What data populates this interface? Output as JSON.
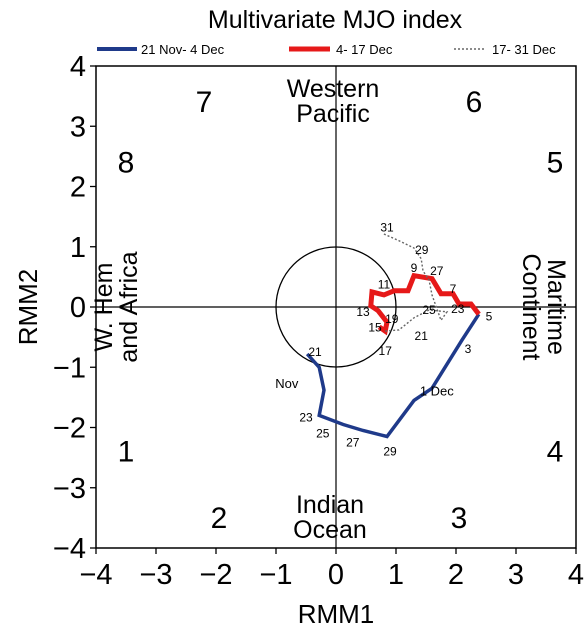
{
  "chart_data": {
    "type": "line",
    "title": "Multivariate MJO index",
    "xlabel": "RMM1",
    "ylabel": "RMM2",
    "xlim": [
      -4,
      4
    ],
    "ylim": [
      -4,
      4
    ],
    "xticks": [
      "−4",
      "−3",
      "−2",
      "−1",
      "0",
      "1",
      "2",
      "3",
      "4"
    ],
    "yticks": [
      "4",
      "3",
      "2",
      "1",
      "0",
      "−1",
      "−2",
      "−3",
      "−4"
    ],
    "legend_position": "top",
    "unit_circle_radius": 1,
    "series": [
      {
        "name": "21 Nov- 4 Dec",
        "color": "#1f3a8a",
        "style": "solid",
        "points": [
          [
            -0.48,
            -0.78
          ],
          [
            -0.28,
            -1.0
          ],
          [
            -0.2,
            -1.38
          ],
          [
            -0.28,
            -1.8
          ],
          [
            0.12,
            -1.95
          ],
          [
            0.45,
            -2.05
          ],
          [
            0.85,
            -2.15
          ],
          [
            1.3,
            -1.55
          ],
          [
            1.6,
            -1.35
          ],
          [
            2.1,
            -0.55
          ],
          [
            2.38,
            -0.12
          ]
        ]
      },
      {
        "name": "4- 17 Dec",
        "color": "#e61919",
        "style": "solid",
        "points": [
          [
            2.38,
            -0.12
          ],
          [
            2.25,
            0.05
          ],
          [
            2.05,
            0.05
          ],
          [
            1.95,
            0.22
          ],
          [
            1.75,
            0.22
          ],
          [
            1.6,
            0.47
          ],
          [
            1.3,
            0.52
          ],
          [
            1.2,
            0.27
          ],
          [
            0.97,
            0.27
          ],
          [
            0.8,
            0.2
          ],
          [
            0.6,
            0.25
          ],
          [
            0.58,
            0.02
          ],
          [
            0.7,
            -0.06
          ],
          [
            0.85,
            -0.25
          ],
          [
            0.82,
            -0.4
          ],
          [
            0.72,
            -0.33
          ]
        ]
      },
      {
        "name": "17- 31 Dec",
        "color": "#666666",
        "style": "dotted",
        "points": [
          [
            0.82,
            -0.4
          ],
          [
            1.05,
            -0.38
          ],
          [
            1.3,
            -0.18
          ],
          [
            1.55,
            -0.05
          ],
          [
            1.85,
            -0.08
          ],
          [
            1.75,
            -0.22
          ],
          [
            1.6,
            0.2
          ],
          [
            1.55,
            0.45
          ],
          [
            1.45,
            0.6
          ],
          [
            1.42,
            0.8
          ],
          [
            1.3,
            0.98
          ],
          [
            1.05,
            1.1
          ],
          [
            0.78,
            1.22
          ]
        ]
      }
    ],
    "phase_labels": [
      {
        "label": "1",
        "x": -3.5,
        "y": -2.4
      },
      {
        "label": "2",
        "x": -1.95,
        "y": -3.5
      },
      {
        "label": "3",
        "x": 2.05,
        "y": -3.5
      },
      {
        "label": "4",
        "x": 3.65,
        "y": -2.4
      },
      {
        "label": "5",
        "x": 3.65,
        "y": 2.4
      },
      {
        "label": "6",
        "x": 2.3,
        "y": 3.4
      },
      {
        "label": "7",
        "x": -2.2,
        "y": 3.4
      },
      {
        "label": "8",
        "x": -3.5,
        "y": 2.4
      }
    ],
    "region_labels": [
      {
        "lines": [
          "Western",
          "Pacific"
        ],
        "x": -0.05,
        "y": 3.45,
        "rotate": 0
      },
      {
        "lines": [
          "Indian",
          "Ocean"
        ],
        "x": -0.1,
        "y": -3.45,
        "rotate": 0
      },
      {
        "lines": [
          "W. Hem",
          "and Africa"
        ],
        "x": -3.7,
        "y": 0.0,
        "rotate": -90
      },
      {
        "lines": [
          "Maritime",
          "Continent"
        ],
        "x": 3.5,
        "y": 0.0,
        "rotate": 90
      }
    ],
    "point_labels": [
      {
        "text": "21",
        "x": -0.35,
        "y": -0.75
      },
      {
        "text": "Nov",
        "x": -0.82,
        "y": -1.28
      },
      {
        "text": "23",
        "x": -0.5,
        "y": -1.83
      },
      {
        "text": "25",
        "x": -0.22,
        "y": -2.1
      },
      {
        "text": "27",
        "x": 0.28,
        "y": -2.25
      },
      {
        "text": "29",
        "x": 0.9,
        "y": -2.4
      },
      {
        "text": "1 Dec",
        "x": 1.68,
        "y": -1.4
      },
      {
        "text": "3",
        "x": 2.2,
        "y": -0.7
      },
      {
        "text": "5",
        "x": 2.55,
        "y": -0.16
      },
      {
        "text": "7",
        "x": 1.95,
        "y": 0.3
      },
      {
        "text": "9",
        "x": 1.3,
        "y": 0.65
      },
      {
        "text": "11",
        "x": 0.8,
        "y": 0.37
      },
      {
        "text": "13",
        "x": 0.45,
        "y": -0.08
      },
      {
        "text": "15",
        "x": 0.65,
        "y": -0.34
      },
      {
        "text": "17",
        "x": 0.82,
        "y": -0.73
      },
      {
        "text": "19",
        "x": 0.93,
        "y": -0.2
      },
      {
        "text": "21",
        "x": 1.42,
        "y": -0.48
      },
      {
        "text": "25",
        "x": 1.55,
        "y": -0.05
      },
      {
        "text": "23",
        "x": 2.03,
        "y": -0.03
      },
      {
        "text": "27",
        "x": 1.68,
        "y": 0.6
      },
      {
        "text": "29",
        "x": 1.43,
        "y": 0.95
      },
      {
        "text": "31",
        "x": 0.85,
        "y": 1.32
      }
    ]
  }
}
